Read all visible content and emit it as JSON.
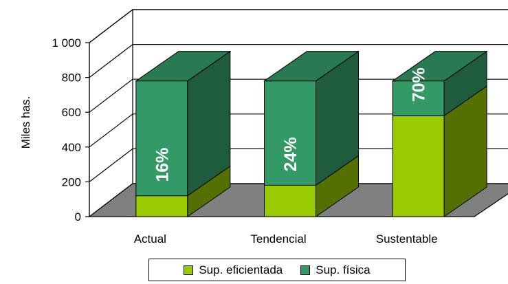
{
  "chart_data": {
    "type": "bar",
    "stacked": true,
    "three_d": true,
    "ylabel": "Miles has.",
    "ylim": [
      0,
      1000
    ],
    "yticks": [
      0,
      200,
      400,
      600,
      800,
      1000
    ],
    "ytick_labels": [
      "0",
      "200",
      "400",
      "600",
      "800",
      "1 000"
    ],
    "categories": [
      "Actual",
      "Tendencial",
      "Sustentable"
    ],
    "series": [
      {
        "name": "Sup. eficientada",
        "values": [
          120,
          180,
          580
        ],
        "color": "#99cc00"
      },
      {
        "name": "Sup. física",
        "values": [
          660,
          600,
          200
        ],
        "color": "#339966"
      }
    ],
    "percent_labels": [
      "16%",
      "24%",
      "70%"
    ],
    "grid": true,
    "floor_color": "#808080",
    "legend_position": "bottom"
  }
}
